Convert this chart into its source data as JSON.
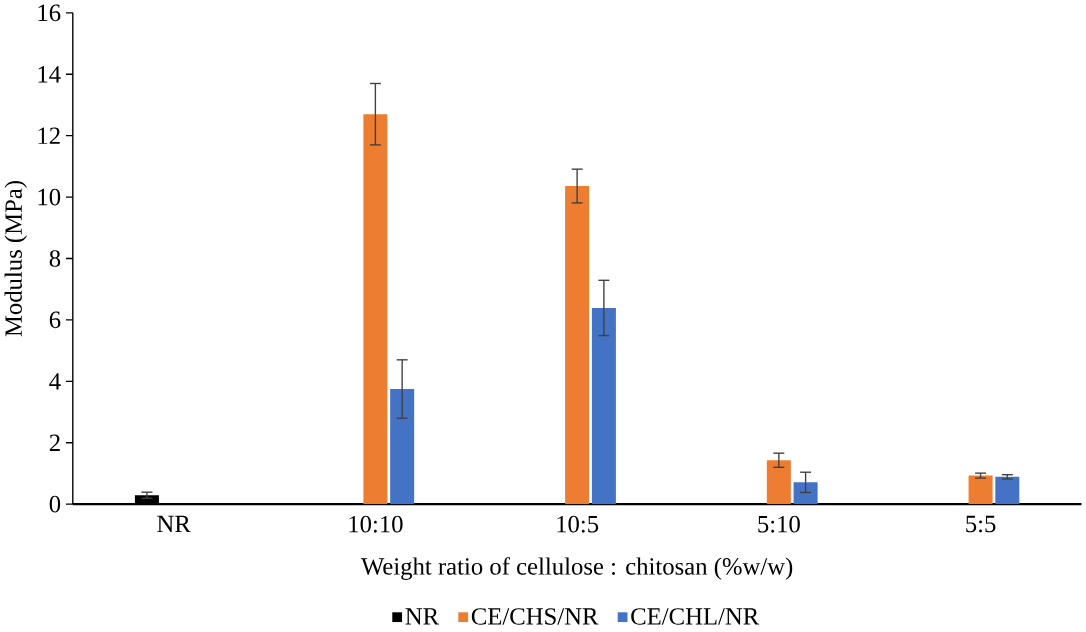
{
  "chart_data": {
    "type": "bar",
    "xlabel": "Weight ratio of cellulose : chitosan (%w/w)",
    "ylabel": "Modulus (MPa)",
    "categories": [
      "NR",
      "10:10",
      "10:5",
      "5:10",
      "5:5"
    ],
    "series": [
      {
        "name": "NR",
        "color": "#000000",
        "values": [
          0.29,
          null,
          null,
          null,
          null
        ],
        "errors": [
          0.1,
          null,
          null,
          null,
          null
        ]
      },
      {
        "name": "CE/CHS/NR",
        "color": "#ed7d31",
        "values": [
          null,
          12.7,
          10.36,
          1.43,
          0.93
        ],
        "errors": [
          null,
          1.0,
          0.55,
          0.23,
          0.08
        ]
      },
      {
        "name": "CE/CHL/NR",
        "color": "#4472c4",
        "values": [
          null,
          3.75,
          6.39,
          0.71,
          0.89
        ],
        "errors": [
          null,
          0.95,
          0.9,
          0.33,
          0.07
        ]
      }
    ],
    "ylim": [
      0,
      16
    ],
    "yticks": [
      0,
      2,
      4,
      6,
      8,
      10,
      12,
      14,
      16
    ],
    "grid": false,
    "legend": "bottom"
  }
}
